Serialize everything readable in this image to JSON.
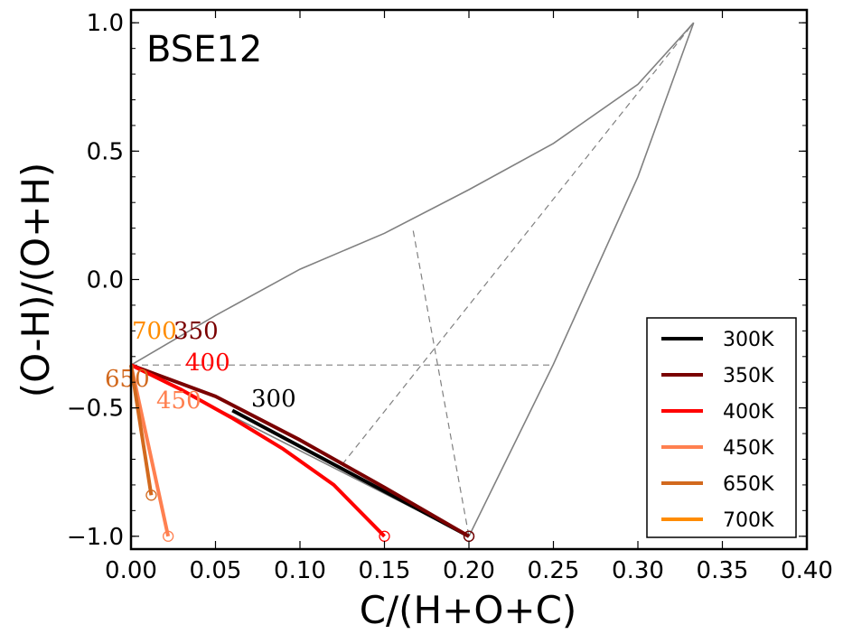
{
  "chart_data": {
    "type": "line",
    "title": "BSE12",
    "xlabel": "C/(H+O+C)",
    "ylabel": "(O-H)/(O+H)",
    "xlim": [
      0.0,
      0.4
    ],
    "ylim": [
      -1.05,
      1.05
    ],
    "xticks": [
      "0.00",
      "0.05",
      "0.10",
      "0.15",
      "0.20",
      "0.25",
      "0.30",
      "0.35",
      "0.40"
    ],
    "yticks": [
      "−1.0",
      "−0.5",
      "0.0",
      "0.5",
      "1.0"
    ],
    "grid": false,
    "legend_position": "lower-right",
    "series": [
      {
        "name": "300K",
        "color": "#000000",
        "start_label": "300",
        "points": [
          [
            0.06,
            -0.51
          ],
          [
            0.2,
            -1.0
          ]
        ],
        "end_marker": [
          0.2,
          -1.0
        ]
      },
      {
        "name": "350K",
        "color": "#7a0000",
        "start_label": "350",
        "points": [
          [
            0.0,
            -0.333
          ],
          [
            0.05,
            -0.455
          ],
          [
            0.1,
            -0.625
          ],
          [
            0.15,
            -0.81
          ],
          [
            0.2,
            -1.0
          ]
        ],
        "end_marker": [
          0.2,
          -1.0
        ]
      },
      {
        "name": "400K",
        "color": "#ff0000",
        "start_label": "400",
        "points": [
          [
            0.0,
            -0.333
          ],
          [
            0.03,
            -0.43
          ],
          [
            0.06,
            -0.54
          ],
          [
            0.09,
            -0.66
          ],
          [
            0.12,
            -0.8
          ],
          [
            0.15,
            -1.0
          ]
        ],
        "end_marker": [
          0.15,
          -1.0
        ]
      },
      {
        "name": "450K",
        "color": "#ff8050",
        "start_label": "450",
        "points": [
          [
            0.0,
            -0.333
          ],
          [
            0.022,
            -1.0
          ]
        ],
        "end_marker": [
          0.022,
          -1.0
        ]
      },
      {
        "name": "650K",
        "color": "#d2691e",
        "start_label": "650",
        "points": [
          [
            0.0,
            -0.333
          ],
          [
            0.012,
            -0.84
          ]
        ],
        "end_marker": [
          0.012,
          -0.84
        ]
      },
      {
        "name": "700K",
        "color": "#ff8c00",
        "start_label": "700",
        "points": [
          [
            0.0,
            -0.333
          ],
          [
            0.0,
            -0.333
          ]
        ],
        "end_marker": null
      }
    ],
    "boundary": {
      "color": "#808080",
      "lines": [
        {
          "style": "solid",
          "points": [
            [
              0.0,
              -0.333
            ],
            [
              0.05,
              -0.14
            ],
            [
              0.1,
              0.04
            ],
            [
              0.15,
              0.18
            ],
            [
              0.2,
              0.35
            ],
            [
              0.25,
              0.53
            ],
            [
              0.3,
              0.76
            ],
            [
              0.333,
              1.0
            ]
          ]
        },
        {
          "style": "solid",
          "points": [
            [
              0.2,
              -1.0
            ],
            [
              0.25,
              -0.33
            ],
            [
              0.3,
              0.4
            ],
            [
              0.333,
              1.0
            ]
          ]
        },
        {
          "style": "solid",
          "points": [
            [
              0.0,
              -0.333
            ],
            [
              0.2,
              -1.0
            ]
          ]
        },
        {
          "style": "dashed",
          "points": [
            [
              0.0,
              -0.333
            ],
            [
              0.25,
              -0.333
            ]
          ]
        },
        {
          "style": "dashed",
          "points": [
            [
              0.125,
              -0.72
            ],
            [
              0.333,
              1.0
            ]
          ]
        },
        {
          "style": "dashed",
          "points": [
            [
              0.167,
              0.19
            ],
            [
              0.2,
              -1.0
            ]
          ]
        }
      ]
    }
  }
}
